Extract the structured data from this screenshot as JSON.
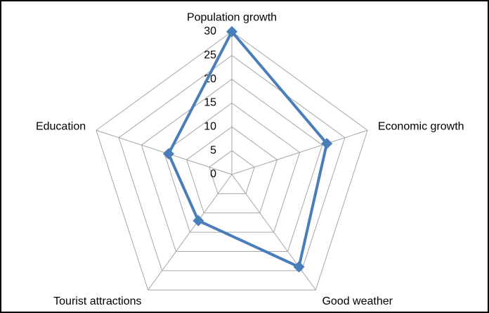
{
  "chart_data": {
    "type": "radar",
    "categories": [
      "Population growth",
      "Economic growth",
      "Good weather",
      "Tourist attractions",
      "Education"
    ],
    "values": [
      30,
      21,
      24,
      12,
      14
    ],
    "color": "#4a7ebb",
    "rlim": [
      0,
      30
    ],
    "rticks": [
      0,
      5,
      10,
      15,
      20,
      25,
      30
    ],
    "grid": true
  }
}
